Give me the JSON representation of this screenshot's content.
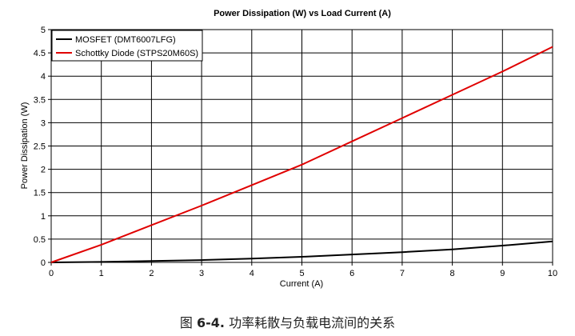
{
  "chart_data": {
    "type": "line",
    "title": "Power Dissipation (W) vs Load Current (A)",
    "xlabel": "Current (A)",
    "ylabel": "Power Dissipation (W)",
    "xlim": [
      0,
      10
    ],
    "ylim": [
      0,
      5
    ],
    "x_ticks": [
      0,
      1,
      2,
      3,
      4,
      5,
      6,
      7,
      8,
      9,
      10
    ],
    "y_ticks": [
      0,
      0.5,
      1,
      1.5,
      2,
      2.5,
      3,
      3.5,
      4,
      4.5,
      5
    ],
    "grid": true,
    "legend_position": "top-left",
    "series": [
      {
        "name": "MOSFET (DMT6007LFG)",
        "color": "#000000",
        "x": [
          0,
          1,
          2,
          3,
          4,
          5,
          6,
          7,
          8,
          9,
          10
        ],
        "y": [
          0,
          0.01,
          0.03,
          0.05,
          0.08,
          0.12,
          0.17,
          0.22,
          0.28,
          0.36,
          0.45
        ]
      },
      {
        "name": "Schottky Diode (STPS20M60S)",
        "color": "#e00000",
        "x": [
          0,
          1,
          2,
          3,
          4,
          5,
          6,
          7,
          8,
          9,
          10
        ],
        "y": [
          0,
          0.38,
          0.8,
          1.22,
          1.66,
          2.1,
          2.6,
          3.1,
          3.6,
          4.1,
          4.63
        ]
      }
    ]
  },
  "caption": {
    "prefix": "图 ",
    "number": "6-4.",
    "text": " 功率耗散与负载电流间的关系"
  }
}
